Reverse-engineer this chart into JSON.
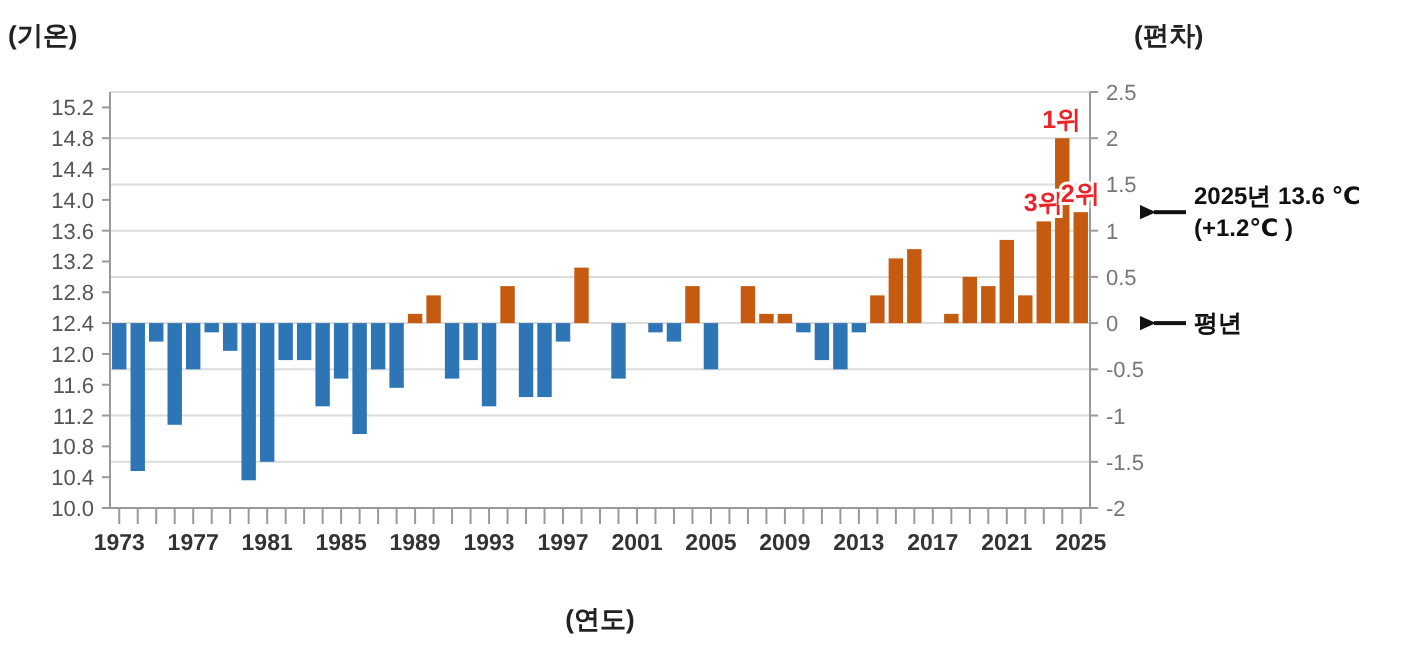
{
  "chart_data": {
    "type": "bar",
    "xlabel": "(연도)",
    "ylabel": "(편차)",
    "y2label": "(기온)",
    "x": [
      1973,
      1974,
      1975,
      1976,
      1977,
      1978,
      1979,
      1980,
      1981,
      1982,
      1983,
      1984,
      1985,
      1986,
      1987,
      1988,
      1989,
      1990,
      1991,
      1992,
      1993,
      1994,
      1995,
      1996,
      1997,
      1998,
      1999,
      2000,
      2001,
      2002,
      2003,
      2004,
      2005,
      2006,
      2007,
      2008,
      2009,
      2010,
      2011,
      2012,
      2013,
      2014,
      2015,
      2016,
      2017,
      2018,
      2019,
      2020,
      2021,
      2022,
      2023,
      2024,
      2025
    ],
    "series": [
      {
        "values": [
          -0.5,
          -1.6,
          -0.2,
          -1.1,
          -0.5,
          -0.1,
          -0.3,
          -1.7,
          -1.5,
          -0.4,
          -0.4,
          -0.9,
          -0.6,
          -1.2,
          -0.5,
          -0.7,
          0.1,
          0.3,
          -0.6,
          -0.4,
          -0.9,
          0.4,
          -0.8,
          -0.8,
          -0.2,
          0.6,
          0,
          -0.6,
          0,
          -0.1,
          -0.2,
          0.4,
          -0.5,
          0,
          0.4,
          0.1,
          0.1,
          -0.1,
          -0.4,
          -0.5,
          -0.1,
          0.3,
          0.7,
          0.8,
          0,
          0.1,
          0.5,
          0.4,
          0.9,
          0.3,
          1.1,
          2.0,
          1.2
        ],
        "colors": [
          "#2e75b6",
          "#2e75b6",
          "#2e75b6",
          "#2e75b6",
          "#2e75b6",
          "#2e75b6",
          "#2e75b6",
          "#2e75b6",
          "#2e75b6",
          "#2e75b6",
          "#2e75b6",
          "#2e75b6",
          "#2e75b6",
          "#2e75b6",
          "#2e75b6",
          "#2e75b6",
          "#c55a11",
          "#c55a11",
          "#2e75b6",
          "#2e75b6",
          "#2e75b6",
          "#c55a11",
          "#2e75b6",
          "#2e75b6",
          "#2e75b6",
          "#c55a11",
          "#c55a11",
          "#2e75b6",
          "#c55a11",
          "#2e75b6",
          "#2e75b6",
          "#c55a11",
          "#2e75b6",
          "#c55a11",
          "#c55a11",
          "#c55a11",
          "#c55a11",
          "#2e75b6",
          "#2e75b6",
          "#2e75b6",
          "#2e75b6",
          "#c55a11",
          "#c55a11",
          "#c55a11",
          "#c55a11",
          "#c55a11",
          "#c55a11",
          "#c55a11",
          "#c55a11",
          "#c55a11",
          "#c55a11",
          "#c55a11",
          "#c55a11"
        ]
      }
    ],
    "xlim": [
      1972.5,
      2025.5
    ],
    "xticks": [
      1973,
      {
        "value": 1974,
        "label": null
      },
      {
        "value": 1975,
        "label": null
      },
      {
        "value": 1976,
        "label": null
      },
      1977,
      {
        "value": 1978,
        "label": null
      },
      {
        "value": 1979,
        "label": null
      },
      {
        "value": 1980,
        "label": null
      },
      1981,
      {
        "value": 1982,
        "label": null
      },
      {
        "value": 1983,
        "label": null
      },
      {
        "value": 1984,
        "label": null
      },
      1985,
      {
        "value": 1986,
        "label": null
      },
      {
        "value": 1987,
        "label": null
      },
      {
        "value": 1988,
        "label": null
      },
      1989,
      {
        "value": 1990,
        "label": null
      },
      {
        "value": 1991,
        "label": null
      },
      {
        "value": 1992,
        "label": null
      },
      1993,
      {
        "value": 1994,
        "label": null
      },
      {
        "value": 1995,
        "label": null
      },
      {
        "value": 1996,
        "label": null
      },
      1997,
      {
        "value": 1998,
        "label": null
      },
      {
        "value": 1999,
        "label": null
      },
      {
        "value": 2000,
        "label": null
      },
      2001,
      {
        "value": 2002,
        "label": null
      },
      {
        "value": 2003,
        "label": null
      },
      {
        "value": 2004,
        "label": null
      },
      2005,
      {
        "value": 2006,
        "label": null
      },
      {
        "value": 2007,
        "label": null
      },
      {
        "value": 2008,
        "label": null
      },
      2009,
      {
        "value": 2010,
        "label": null
      },
      {
        "value": 2011,
        "label": null
      },
      {
        "value": 2012,
        "label": null
      },
      2013,
      {
        "value": 2014,
        "label": null
      },
      {
        "value": 2015,
        "label": null
      },
      {
        "value": 2016,
        "label": null
      },
      2017,
      {
        "value": 2018,
        "label": null
      },
      {
        "value": 2019,
        "label": null
      },
      {
        "value": 2020,
        "label": null
      },
      2021,
      {
        "value": 2022,
        "label": null
      },
      {
        "value": 2023,
        "label": null
      },
      {
        "value": 2024,
        "label": null
      },
      2025
    ],
    "y2lim": [
      10.0,
      15.4
    ],
    "y2ticks": [
      {
        "value": 10.0,
        "label": "10.0"
      },
      10.4,
      10.8,
      11.2,
      11.6,
      {
        "value": 12.0,
        "label": "12.0"
      },
      12.4,
      12.8,
      13.2,
      13.6,
      {
        "value": 14.0,
        "label": "14.0"
      },
      14.4,
      14.8,
      15.2
    ],
    "ylim": [
      -2,
      2.5
    ],
    "yticks": [
      -2,
      -1.5,
      -1,
      -0.5,
      0,
      0.5,
      1,
      1.5,
      2,
      2.5
    ],
    "grid": "y",
    "annotations": [
      {
        "text": "1위",
        "x": 2024,
        "y": 2.0
      },
      {
        "text": "3위",
        "x": 2023,
        "y": 1.1
      },
      {
        "text": "2위",
        "x": 2025,
        "y": 1.2
      }
    ],
    "ref_lines": [
      {
        "axis": "y",
        "value": 1.2,
        "label": "2025년 13.6 ℃\n(+1.2℃ )"
      },
      {
        "axis": "y",
        "value": 0,
        "label": "평년"
      }
    ]
  }
}
